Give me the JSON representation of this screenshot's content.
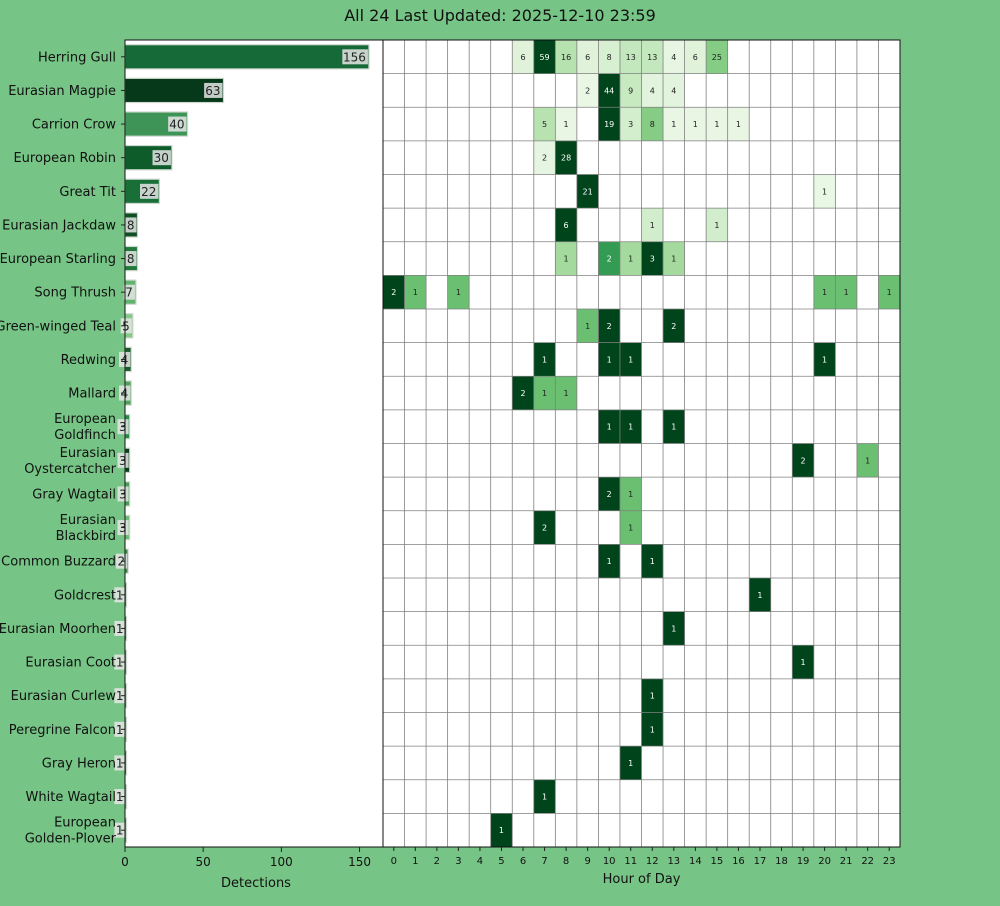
{
  "title": "All 24 Last Updated: 2025-12-10 23:59",
  "chart_data": [
    {
      "type": "bar",
      "orientation": "horizontal",
      "categories": [
        "Herring Gull",
        "Eurasian Magpie",
        "Carrion Crow",
        "European Robin",
        "Great Tit",
        "Eurasian Jackdaw",
        "European Starling",
        "Song Thrush",
        "Green-winged Teal",
        "Redwing",
        "Mallard",
        "European Goldfinch",
        "Eurasian Oystercatcher",
        "Gray Wagtail",
        "Eurasian Blackbird",
        "Common Buzzard",
        "Goldcrest",
        "Eurasian Moorhen",
        "Eurasian Coot",
        "Eurasian Curlew",
        "Peregrine Falcon",
        "Gray Heron",
        "White Wagtail",
        "European Golden-Plover"
      ],
      "values": [
        156,
        63,
        40,
        30,
        22,
        8,
        8,
        7,
        5,
        4,
        4,
        3,
        3,
        3,
        3,
        2,
        1,
        1,
        1,
        1,
        1,
        1,
        1,
        1
      ],
      "xlabel": "Detections",
      "xlim": [
        0,
        165
      ],
      "xticks": [
        0,
        50,
        100,
        150
      ]
    },
    {
      "type": "heatmap",
      "x": [
        0,
        1,
        2,
        3,
        4,
        5,
        6,
        7,
        8,
        9,
        10,
        11,
        12,
        13,
        14,
        15,
        16,
        17,
        18,
        19,
        20,
        21,
        22,
        23
      ],
      "xlabel": "Hour of Day",
      "highlight_hour": 23,
      "rows": [
        {
          "species": "Herring Gull",
          "cells": [
            [
              6,
              6
            ],
            [
              7,
              59
            ],
            [
              8,
              16
            ],
            [
              9,
              6
            ],
            [
              10,
              8
            ],
            [
              11,
              13
            ],
            [
              12,
              13
            ],
            [
              13,
              4
            ],
            [
              14,
              6
            ],
            [
              15,
              25
            ]
          ]
        },
        {
          "species": "Eurasian Magpie",
          "cells": [
            [
              9,
              2
            ],
            [
              10,
              44
            ],
            [
              11,
              9
            ],
            [
              12,
              4
            ],
            [
              13,
              4
            ]
          ]
        },
        {
          "species": "Carrion Crow",
          "cells": [
            [
              7,
              5
            ],
            [
              8,
              1
            ],
            [
              10,
              19
            ],
            [
              11,
              3
            ],
            [
              12,
              8
            ],
            [
              13,
              1
            ],
            [
              14,
              1
            ],
            [
              15,
              1
            ],
            [
              16,
              1
            ]
          ]
        },
        {
          "species": "European Robin",
          "cells": [
            [
              7,
              2
            ],
            [
              8,
              28
            ]
          ]
        },
        {
          "species": "Great Tit",
          "cells": [
            [
              9,
              21
            ],
            [
              20,
              1
            ]
          ]
        },
        {
          "species": "Eurasian Jackdaw",
          "cells": [
            [
              8,
              6
            ],
            [
              12,
              1
            ],
            [
              15,
              1
            ]
          ]
        },
        {
          "species": "European Starling",
          "cells": [
            [
              8,
              1
            ],
            [
              10,
              2
            ],
            [
              11,
              1
            ],
            [
              12,
              3
            ],
            [
              13,
              1
            ]
          ]
        },
        {
          "species": "Song Thrush",
          "cells": [
            [
              0,
              2
            ],
            [
              1,
              1
            ],
            [
              3,
              1
            ],
            [
              20,
              1
            ],
            [
              21,
              1
            ],
            [
              23,
              1
            ]
          ]
        },
        {
          "species": "Green-winged Teal",
          "cells": [
            [
              9,
              1
            ],
            [
              10,
              2
            ],
            [
              13,
              2
            ]
          ]
        },
        {
          "species": "Redwing",
          "cells": [
            [
              7,
              1
            ],
            [
              10,
              1
            ],
            [
              11,
              1
            ],
            [
              20,
              1
            ]
          ]
        },
        {
          "species": "Mallard",
          "cells": [
            [
              6,
              2
            ],
            [
              7,
              1
            ],
            [
              8,
              1
            ]
          ]
        },
        {
          "species": "European Goldfinch",
          "cells": [
            [
              10,
              1
            ],
            [
              11,
              1
            ],
            [
              13,
              1
            ]
          ]
        },
        {
          "species": "Eurasian Oystercatcher",
          "cells": [
            [
              19,
              2
            ],
            [
              22,
              1
            ]
          ]
        },
        {
          "species": "Gray Wagtail",
          "cells": [
            [
              10,
              2
            ],
            [
              11,
              1
            ]
          ]
        },
        {
          "species": "Eurasian Blackbird",
          "cells": [
            [
              7,
              2
            ],
            [
              11,
              1
            ]
          ]
        },
        {
          "species": "Common Buzzard",
          "cells": [
            [
              10,
              1
            ],
            [
              12,
              1
            ]
          ]
        },
        {
          "species": "Goldcrest",
          "cells": [
            [
              17,
              1
            ]
          ]
        },
        {
          "species": "Eurasian Moorhen",
          "cells": [
            [
              13,
              1
            ]
          ]
        },
        {
          "species": "Eurasian Coot",
          "cells": [
            [
              19,
              1
            ]
          ]
        },
        {
          "species": "Eurasian Curlew",
          "cells": [
            [
              12,
              1
            ]
          ]
        },
        {
          "species": "Peregrine Falcon",
          "cells": [
            [
              12,
              1
            ]
          ]
        },
        {
          "species": "Gray Heron",
          "cells": [
            [
              11,
              1
            ]
          ]
        },
        {
          "species": "White Wagtail",
          "cells": [
            [
              7,
              1
            ]
          ]
        },
        {
          "species": "European Golden-Plover",
          "cells": [
            [
              5,
              1
            ]
          ]
        }
      ],
      "colormap": "Greens"
    }
  ],
  "colors": {
    "background": "#77c586",
    "panel": "#ffffff",
    "grid": "#808080",
    "highlight_tick": "#e8ff3a"
  }
}
